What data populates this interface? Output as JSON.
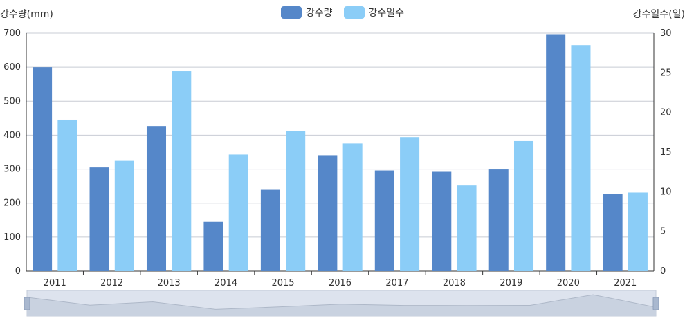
{
  "chart_data": {
    "type": "bar",
    "categories": [
      "2011",
      "2012",
      "2013",
      "2014",
      "2015",
      "2016",
      "2017",
      "2018",
      "2019",
      "2020",
      "2021"
    ],
    "series": [
      {
        "name": "강수량",
        "axis": "left",
        "color": "#5587c9",
        "values": [
          600,
          305,
          427,
          145,
          239,
          341,
          296,
          292,
          299,
          697,
          227
        ]
      },
      {
        "name": "강수일수",
        "axis": "right",
        "color": "#8bcdf7",
        "values": [
          19.1,
          13.9,
          25.2,
          14.7,
          17.7,
          16.1,
          16.9,
          10.8,
          16.4,
          28.5,
          9.9
        ]
      }
    ],
    "ylabel_left": "강수량(mm)",
    "ylabel_right": "강수일수(일)",
    "ylim_left": [
      0,
      700
    ],
    "ylim_right": [
      0,
      30
    ],
    "yticks_left": [
      "0",
      "100",
      "200",
      "300",
      "400",
      "500",
      "600",
      "700"
    ],
    "yticks_right": [
      "0",
      "5",
      "10",
      "15",
      "20",
      "25",
      "30"
    ],
    "grid": true,
    "legend": "top-center"
  },
  "colors": {
    "grid": "#c8ccd4",
    "axis": "#333333",
    "slider_bg": "#dde3ee",
    "slider_fill": "#c9d2e0",
    "slider_handle": "#a9b8cf"
  }
}
